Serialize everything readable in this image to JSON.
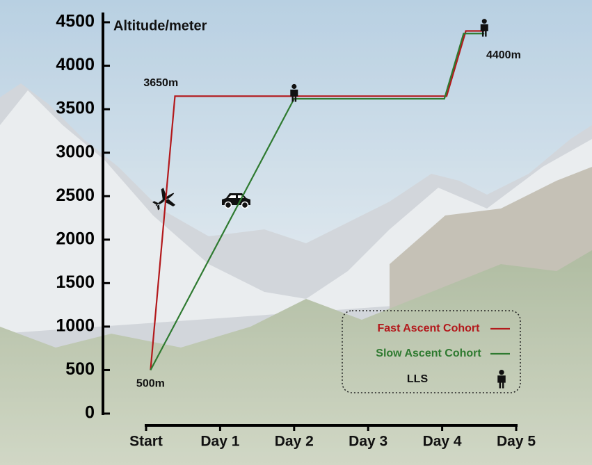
{
  "chart_data": {
    "type": "line",
    "y_axis_label": "Altitude/meter",
    "xlim": [
      0,
      5
    ],
    "xticks": [
      {
        "value": 0,
        "label": "Start"
      },
      {
        "value": 1,
        "label": "Day 1"
      },
      {
        "value": 2,
        "label": "Day 2"
      },
      {
        "value": 3,
        "label": "Day 3"
      },
      {
        "value": 4,
        "label": "Day 4"
      },
      {
        "value": 5,
        "label": "Day 5"
      }
    ],
    "ylim": [
      0,
      4500
    ],
    "yticks": [
      0,
      500,
      1000,
      1500,
      2000,
      2500,
      3000,
      3500,
      4000,
      4500
    ],
    "series": [
      {
        "name": "Fast Ascent Cohort",
        "color": "#b3191c",
        "x": [
          0.06,
          0.39,
          4.06,
          4.32,
          4.57
        ],
        "values": [
          500,
          3650,
          3650,
          4400,
          4400
        ]
      },
      {
        "name": "Slow Ascent Cohort",
        "color": "#2e7a30",
        "x": [
          0.06,
          2.0,
          4.03,
          4.29,
          4.57
        ],
        "values": [
          500,
          3620,
          3620,
          4370,
          4370
        ]
      }
    ],
    "lls": {
      "name": "LLS",
      "x": [
        2.0,
        4.57
      ],
      "values": [
        3650,
        4400
      ]
    },
    "annotations": [
      {
        "text": "3650m",
        "x": 0.2,
        "y": 3800
      },
      {
        "text": "500m",
        "x": 0.06,
        "y": 340
      },
      {
        "text": "4400m",
        "x": 4.83,
        "y": 4120
      }
    ],
    "legend": "bottom-right"
  }
}
